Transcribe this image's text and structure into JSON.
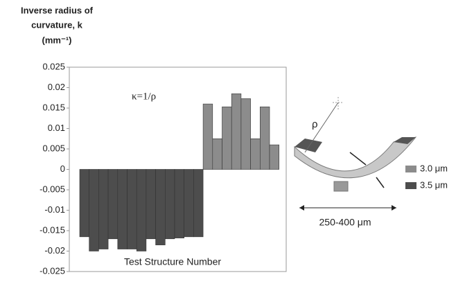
{
  "chart_data": {
    "type": "bar",
    "y_label_lines": [
      "Inverse radius of",
      "curvature, k",
      "(mm⁻¹)"
    ],
    "x_label": "Test Structure Number",
    "annotation": "κ=1/ρ",
    "diagram_radius_label": "ρ",
    "diagram_width_label": "250-400 μm",
    "categories": [
      null,
      null,
      null,
      null,
      null,
      null,
      null,
      null,
      null,
      null,
      null,
      null,
      null,
      null,
      null,
      null,
      null,
      null,
      null,
      null,
      null
    ],
    "series": [
      {
        "name": "3.0 μm",
        "color": "#8c8c8c",
        "values": [
          null,
          null,
          null,
          null,
          null,
          null,
          null,
          null,
          null,
          null,
          null,
          null,
          null,
          0.016,
          0.0075,
          0.0153,
          0.0185,
          0.0173,
          0.0075,
          0.0153,
          0.006
        ]
      },
      {
        "name": "3.5 μm",
        "color": "#4d4d4d",
        "values": [
          -0.0165,
          -0.02,
          -0.0195,
          -0.017,
          -0.0195,
          -0.0195,
          -0.02,
          -0.017,
          -0.0185,
          -0.017,
          -0.0168,
          -0.0165,
          -0.0165,
          null,
          null,
          null,
          null,
          null,
          null,
          null,
          null
        ]
      }
    ],
    "ylim": [
      -0.025,
      0.025
    ],
    "yticks": [
      0.025,
      0.02,
      0.015,
      0.01,
      0.005,
      0,
      -0.005,
      -0.01,
      -0.015,
      -0.02,
      -0.025
    ]
  }
}
